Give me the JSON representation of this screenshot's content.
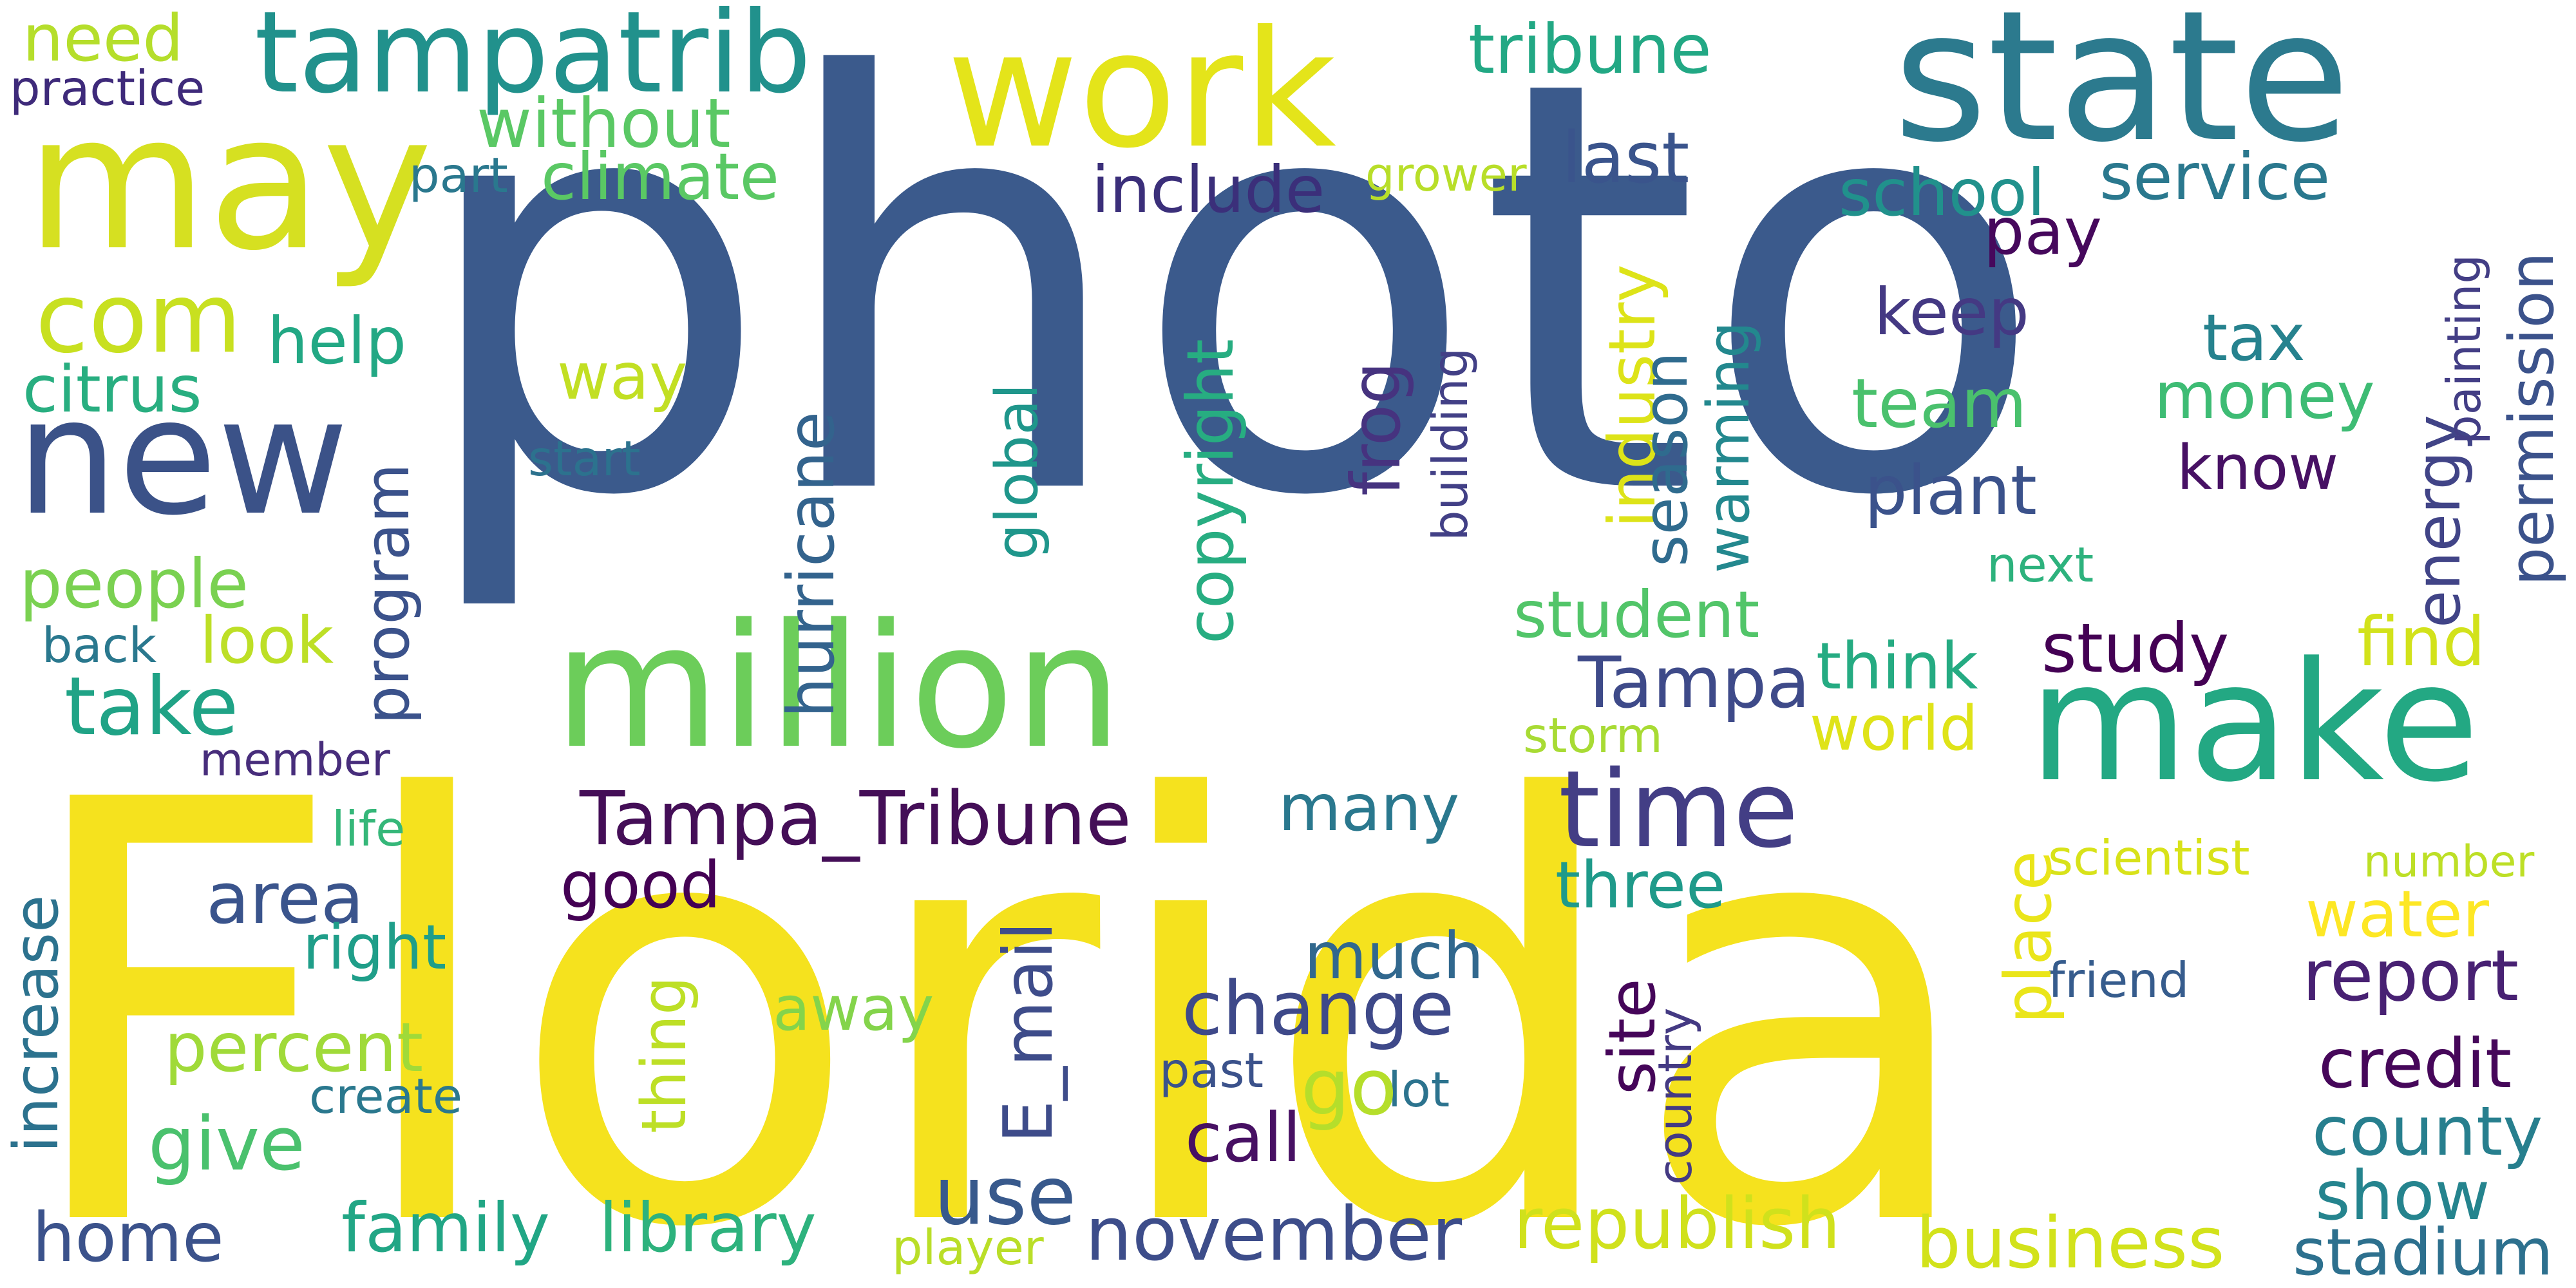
{
  "words": [
    {
      "id": "photo",
      "text": "photo",
      "color": "#3b5a8c"
    },
    {
      "id": "florida",
      "text": "Florida",
      "color": "#f5e21e"
    },
    {
      "id": "million",
      "text": "million",
      "color": "#6ccd5a"
    },
    {
      "id": "state",
      "text": "state",
      "color": "#2c7a8e"
    },
    {
      "id": "make",
      "text": "make",
      "color": "#23a883"
    },
    {
      "id": "may",
      "text": "may",
      "color": "#d6e021"
    },
    {
      "id": "work",
      "text": "work",
      "color": "#e4e41a"
    },
    {
      "id": "new",
      "text": "new",
      "color": "#3b5288"
    },
    {
      "id": "tampatrib",
      "text": "tampatrib",
      "color": "#21918c"
    },
    {
      "id": "time",
      "text": "time",
      "color": "#433e85"
    },
    {
      "id": "tampa_tribune",
      "text": "Tampa_Tribune",
      "color": "#440e57"
    },
    {
      "id": "com",
      "text": "com",
      "color": "#c8e020"
    },
    {
      "id": "need",
      "text": "need",
      "color": "#b5de2b"
    },
    {
      "id": "practice",
      "text": "practice",
      "color": "#3e2a7a"
    },
    {
      "id": "without",
      "text": "without",
      "color": "#5ac864"
    },
    {
      "id": "climate",
      "text": "climate",
      "color": "#5ac864"
    },
    {
      "id": "part",
      "text": "part",
      "color": "#2a788e"
    },
    {
      "id": "tribune",
      "text": "tribune",
      "color": "#22a884"
    },
    {
      "id": "last",
      "text": "last",
      "color": "#3a548c"
    },
    {
      "id": "include",
      "text": "include",
      "color": "#3b2f7a"
    },
    {
      "id": "grower",
      "text": "grower",
      "color": "#b8de29"
    },
    {
      "id": "school",
      "text": "school",
      "color": "#21918c"
    },
    {
      "id": "service",
      "text": "service",
      "color": "#2a788e"
    },
    {
      "id": "pay",
      "text": "pay",
      "color": "#46085c"
    },
    {
      "id": "help",
      "text": "help",
      "color": "#22a884"
    },
    {
      "id": "citrus",
      "text": "citrus",
      "color": "#28ae80"
    },
    {
      "id": "way",
      "text": "way",
      "color": "#c2df23"
    },
    {
      "id": "start",
      "text": "start",
      "color": "#2c728e"
    },
    {
      "id": "keep",
      "text": "keep",
      "color": "#443983"
    },
    {
      "id": "tax",
      "text": "tax",
      "color": "#26828e"
    },
    {
      "id": "money",
      "text": "money",
      "color": "#3ebc74"
    },
    {
      "id": "team",
      "text": "team",
      "color": "#4ac16d"
    },
    {
      "id": "plant",
      "text": "plant",
      "color": "#3b528b"
    },
    {
      "id": "know",
      "text": "know",
      "color": "#471164"
    },
    {
      "id": "next",
      "text": "next",
      "color": "#2db27d"
    },
    {
      "id": "people",
      "text": "people",
      "color": "#7ad151"
    },
    {
      "id": "look",
      "text": "look",
      "color": "#bddf26"
    },
    {
      "id": "back",
      "text": "back",
      "color": "#2a788e"
    },
    {
      "id": "take",
      "text": "take",
      "color": "#20a386"
    },
    {
      "id": "member",
      "text": "member",
      "color": "#472d7b"
    },
    {
      "id": "student",
      "text": "student",
      "color": "#52c569"
    },
    {
      "id": "study",
      "text": "study",
      "color": "#440154"
    },
    {
      "id": "find",
      "text": "find",
      "color": "#d2e21b"
    },
    {
      "id": "tampa",
      "text": "Tampa",
      "color": "#3e4a89"
    },
    {
      "id": "think",
      "text": "think",
      "color": "#25ab82"
    },
    {
      "id": "world",
      "text": "world",
      "color": "#dfe318"
    },
    {
      "id": "storm",
      "text": "storm",
      "color": "#a8db34"
    },
    {
      "id": "many",
      "text": "many",
      "color": "#2a788e"
    },
    {
      "id": "area",
      "text": "area",
      "color": "#3a548c"
    },
    {
      "id": "life",
      "text": "life",
      "color": "#35b779"
    },
    {
      "id": "good",
      "text": "good",
      "color": "#440154"
    },
    {
      "id": "three",
      "text": "three",
      "color": "#1f9a8a"
    },
    {
      "id": "scientist",
      "text": "scientist",
      "color": "#d8e219"
    },
    {
      "id": "number",
      "text": "number",
      "color": "#bddf26"
    },
    {
      "id": "water",
      "text": "water",
      "color": "#fde725"
    },
    {
      "id": "right",
      "text": "right",
      "color": "#1f9e89"
    },
    {
      "id": "much",
      "text": "much",
      "color": "#31688e"
    },
    {
      "id": "change",
      "text": "change",
      "color": "#3e4989"
    },
    {
      "id": "report",
      "text": "report",
      "color": "#482173"
    },
    {
      "id": "percent",
      "text": "percent",
      "color": "#a0da39"
    },
    {
      "id": "away",
      "text": "away",
      "color": "#84d44b"
    },
    {
      "id": "friend",
      "text": "friend",
      "color": "#365c8d"
    },
    {
      "id": "credit",
      "text": "credit",
      "color": "#46075a"
    },
    {
      "id": "create",
      "text": "create",
      "color": "#2a788e"
    },
    {
      "id": "past",
      "text": "past",
      "color": "#3b528b"
    },
    {
      "id": "lot",
      "text": "lot",
      "color": "#2c738e"
    },
    {
      "id": "go",
      "text": "go",
      "color": "#b5de2b"
    },
    {
      "id": "county",
      "text": "county",
      "color": "#277f8e"
    },
    {
      "id": "give",
      "text": "give",
      "color": "#4ac16d"
    },
    {
      "id": "call",
      "text": "call",
      "color": "#471063"
    },
    {
      "id": "use",
      "text": "use",
      "color": "#38598c"
    },
    {
      "id": "show",
      "text": "show",
      "color": "#25848e"
    },
    {
      "id": "home",
      "text": "home",
      "color": "#3b528b"
    },
    {
      "id": "family",
      "text": "family",
      "color": "#21a685"
    },
    {
      "id": "library",
      "text": "library",
      "color": "#2db27d"
    },
    {
      "id": "player",
      "text": "player",
      "color": "#bade28"
    },
    {
      "id": "november",
      "text": "november",
      "color": "#3d4d8a"
    },
    {
      "id": "republish",
      "text": "republish",
      "color": "#d0e11c"
    },
    {
      "id": "business",
      "text": "business",
      "color": "#d2e21b"
    },
    {
      "id": "stadium",
      "text": "stadium",
      "color": "#2d708e"
    },
    {
      "id": "increase",
      "text": "increase",
      "color": "#2c728e"
    },
    {
      "id": "program",
      "text": "program",
      "color": "#3b528b"
    },
    {
      "id": "hurricane",
      "text": "hurricane",
      "color": "#33638d"
    },
    {
      "id": "global",
      "text": "global",
      "color": "#1f968b"
    },
    {
      "id": "e_mail",
      "text": "E_mail",
      "color": "#3e4c8a"
    },
    {
      "id": "copyright",
      "text": "copyright",
      "color": "#27ad81"
    },
    {
      "id": "frog",
      "text": "frog",
      "color": "#46337f"
    },
    {
      "id": "building",
      "text": "building",
      "color": "#424086"
    },
    {
      "id": "industry",
      "text": "industry",
      "color": "#dde318"
    },
    {
      "id": "season",
      "text": "season",
      "color": "#2f6b8e"
    },
    {
      "id": "warming",
      "text": "warming",
      "color": "#23888e"
    },
    {
      "id": "thing",
      "text": "thing",
      "color": "#bddf26"
    },
    {
      "id": "site",
      "text": "site",
      "color": "#450559"
    },
    {
      "id": "country",
      "text": "country",
      "color": "#443a83"
    },
    {
      "id": "place",
      "text": "place",
      "color": "#eae51a"
    },
    {
      "id": "energy",
      "text": "energy",
      "color": "#414487"
    },
    {
      "id": "painting",
      "text": "painting",
      "color": "#433e85"
    },
    {
      "id": "permission",
      "text": "permission",
      "color": "#3b528b"
    }
  ]
}
